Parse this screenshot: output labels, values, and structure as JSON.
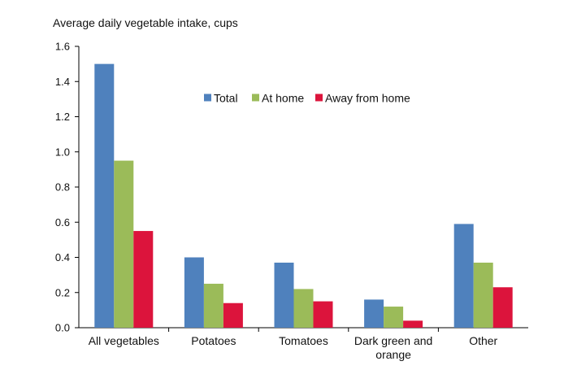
{
  "chart_data": {
    "type": "bar",
    "title": "Average daily vegetable intake, cups",
    "xlabel": "",
    "ylabel": "",
    "ylim": [
      0,
      1.6
    ],
    "yticks": [
      0,
      0.2,
      0.4,
      0.6,
      0.8,
      1.0,
      1.2,
      1.4,
      1.6
    ],
    "ytick_labels": [
      "0.0",
      "0.2",
      "0.4",
      "0.6",
      "0.8",
      "1.0",
      "1.2",
      "1.4",
      "1.6"
    ],
    "grid": false,
    "legend_position": "top-center",
    "categories": [
      [
        "All vegetables"
      ],
      [
        "Potatoes"
      ],
      [
        "Tomatoes"
      ],
      [
        "Dark green and",
        "orange"
      ],
      [
        "Other"
      ]
    ],
    "series": [
      {
        "name": "Total",
        "color": "#4F81BD",
        "values": [
          1.5,
          0.4,
          0.37,
          0.16,
          0.59
        ]
      },
      {
        "name": "At home",
        "color": "#9BBB59",
        "values": [
          0.95,
          0.25,
          0.22,
          0.12,
          0.37
        ]
      },
      {
        "name": "Away from home",
        "color": "#DC143C",
        "values": [
          0.55,
          0.14,
          0.15,
          0.04,
          0.23
        ]
      }
    ]
  }
}
